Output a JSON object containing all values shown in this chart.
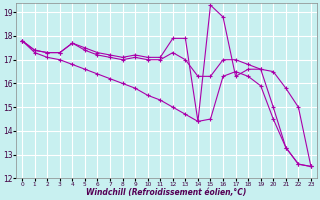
{
  "xlabel": "Windchill (Refroidissement éolien,°C)",
  "bg_color": "#c8f0f0",
  "line_color": "#aa00aa",
  "grid_color": "#ffffff",
  "xlim": [
    -0.5,
    23.5
  ],
  "ylim": [
    12,
    19.4
  ],
  "yticks": [
    12,
    13,
    14,
    15,
    16,
    17,
    18,
    19
  ],
  "xticks": [
    0,
    1,
    2,
    3,
    4,
    5,
    6,
    7,
    8,
    9,
    10,
    11,
    12,
    13,
    14,
    15,
    16,
    17,
    18,
    19,
    20,
    21,
    22,
    23
  ],
  "line1_x": [
    0,
    1,
    2,
    3,
    4,
    5,
    6,
    7,
    8,
    9,
    10,
    11,
    12,
    13,
    14,
    15,
    16,
    17,
    18,
    19,
    20,
    21,
    22,
    23
  ],
  "line1_y": [
    17.8,
    17.4,
    17.3,
    17.3,
    17.7,
    17.5,
    17.3,
    17.2,
    17.1,
    17.2,
    17.1,
    17.1,
    17.9,
    17.9,
    14.4,
    19.3,
    18.8,
    16.3,
    16.6,
    16.6,
    15.0,
    13.3,
    12.6,
    12.5
  ],
  "line2_x": [
    0,
    1,
    2,
    3,
    4,
    5,
    6,
    7,
    8,
    9,
    10,
    11,
    12,
    13,
    14,
    15,
    16,
    17,
    18,
    19,
    20,
    21,
    22,
    23
  ],
  "line2_y": [
    17.8,
    17.4,
    17.3,
    17.3,
    17.7,
    17.4,
    17.2,
    17.1,
    17.0,
    17.1,
    17.0,
    17.0,
    17.3,
    17.0,
    16.3,
    16.3,
    17.0,
    17.0,
    16.8,
    16.6,
    16.5,
    15.8,
    15.0,
    12.5
  ],
  "line3_x": [
    0,
    1,
    2,
    3,
    4,
    5,
    6,
    7,
    8,
    9,
    10,
    11,
    12,
    13,
    14,
    15,
    16,
    17,
    18,
    19,
    20,
    21,
    22,
    23
  ],
  "line3_y": [
    17.8,
    17.3,
    17.1,
    17.0,
    16.8,
    16.6,
    16.4,
    16.2,
    16.0,
    15.8,
    15.5,
    15.3,
    15.0,
    14.7,
    14.4,
    14.5,
    16.3,
    16.5,
    16.3,
    15.9,
    14.5,
    13.3,
    12.6,
    12.5
  ]
}
